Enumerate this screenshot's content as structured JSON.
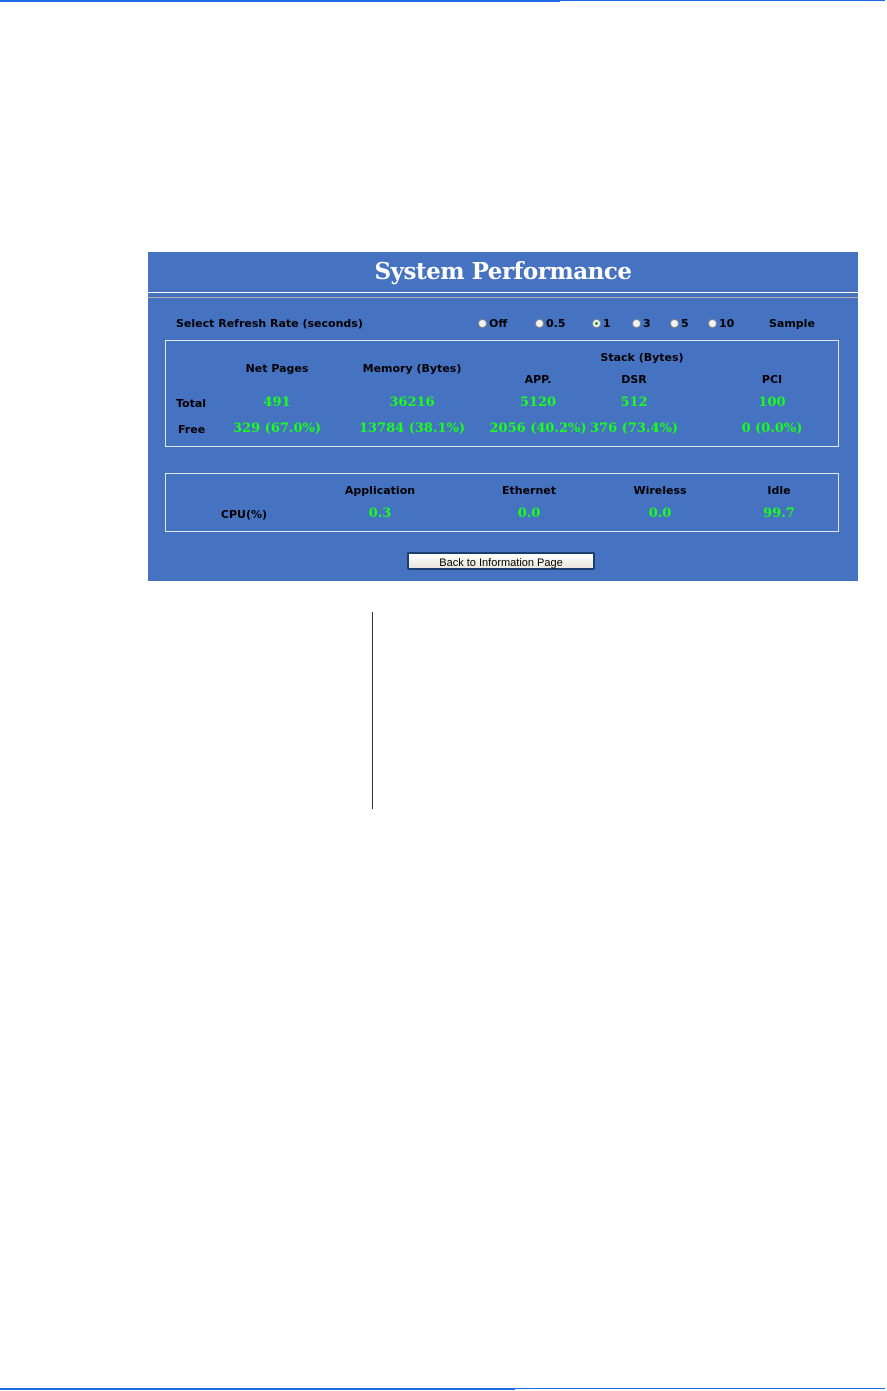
{
  "colors": {
    "panel_bg": "#4672c2",
    "value_green": "#19ff19",
    "rule_blue": "#1f6ae6"
  },
  "title": "System Performance",
  "refresh": {
    "label": "Select Refresh Rate (seconds)",
    "options": [
      "Off",
      "0.5",
      "1",
      "3",
      "5",
      "10"
    ],
    "selected": "1",
    "sample_label": "Sample"
  },
  "memory": {
    "headers": {
      "net_pages": "Net Pages",
      "memory": "Memory (Bytes)",
      "stack": "Stack (Bytes)",
      "app": "APP.",
      "dsr": "DSR",
      "pci": "PCI"
    },
    "total": {
      "label": "Total",
      "net_pages": "491",
      "memory": "36216",
      "app": "5120",
      "dsr": "512",
      "pci": "100"
    },
    "free": {
      "label": "Free",
      "net_pages": "329 (67.0%)",
      "memory": "13784 (38.1%)",
      "app": "2056 (40.2%)",
      "dsr": "376 (73.4%)",
      "pci": "0 (0.0%)"
    }
  },
  "cpu": {
    "headers": {
      "application": "Application",
      "ethernet": "Ethernet",
      "wireless": "Wireless",
      "idle": "Idle"
    },
    "label": "CPU(%)",
    "application": "0.3",
    "ethernet": "0.0",
    "wireless": "0.0",
    "idle": "99.7"
  },
  "back_button": "Back to Information Page"
}
